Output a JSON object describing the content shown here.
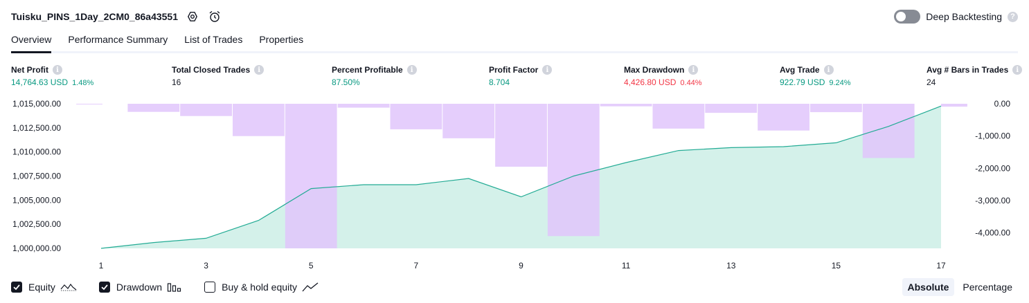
{
  "header": {
    "title": "Tuisku_PINS_1Day_2CM0_86a43551",
    "deep_backtesting_label": "Deep Backtesting",
    "help_glyph": "?"
  },
  "tabs": [
    {
      "label": "Overview",
      "active": true
    },
    {
      "label": "Performance Summary",
      "active": false
    },
    {
      "label": "List of Trades",
      "active": false
    },
    {
      "label": "Properties",
      "active": false
    }
  ],
  "metrics": [
    {
      "label": "Net Profit",
      "value": "14,764.63 USD",
      "pct": "1.48%",
      "tone": "pos"
    },
    {
      "label": "Total Closed Trades",
      "value": "16",
      "pct": "",
      "tone": "neu"
    },
    {
      "label": "Percent Profitable",
      "value": "87.50%",
      "pct": "",
      "tone": "pos"
    },
    {
      "label": "Profit Factor",
      "value": "8.704",
      "pct": "",
      "tone": "pos"
    },
    {
      "label": "Max Drawdown",
      "value": "4,426.80 USD",
      "pct": "0.44%",
      "tone": "neg"
    },
    {
      "label": "Avg Trade",
      "value": "922.79 USD",
      "pct": "9.24%",
      "tone": "pos"
    },
    {
      "label": "Avg # Bars in Trades",
      "value": "24",
      "pct": "",
      "tone": "neu"
    }
  ],
  "legend": {
    "equity_label": "Equity",
    "equity_checked": true,
    "drawdown_label": "Drawdown",
    "drawdown_checked": true,
    "buyhold_label": "Buy & hold equity",
    "buyhold_checked": false
  },
  "mode": {
    "absolute": "Absolute",
    "percentage": "Percentage",
    "selected": "Absolute"
  },
  "colors": {
    "equity_line": "#22ab94",
    "equity_fill": "#cdeee6",
    "drawdown_bar": "#e1c5fb",
    "positive": "#089981",
    "negative": "#f23645"
  },
  "icons": [
    "settings-icon",
    "alert-clock-icon",
    "info-icon",
    "check-icon",
    "equity-line-icon",
    "drawdown-bars-icon",
    "buyhold-line-icon"
  ],
  "chart_data": {
    "type": "line+bar",
    "x_ticks": [
      "1",
      "3",
      "5",
      "7",
      "9",
      "11",
      "13",
      "15",
      "17"
    ],
    "left_axis": {
      "ticks": [
        "1,015,000.00",
        "1,012,500.00",
        "1,010,000.00",
        "1,007,500.00",
        "1,005,000.00",
        "1,002,500.00",
        "1,000,000.00"
      ],
      "range": [
        1000000,
        1015000
      ]
    },
    "right_axis": {
      "ticks": [
        "0.00",
        "-1,000.00",
        "-2,000.00",
        "-3,000.00",
        "-4,000.00"
      ],
      "range": [
        -4480,
        0
      ]
    },
    "equity": {
      "name": "Equity",
      "x": [
        1,
        2,
        3,
        4,
        5,
        6,
        7,
        8,
        9,
        10,
        11,
        12,
        13,
        14,
        15,
        16,
        17
      ],
      "values": [
        1000000,
        1000600,
        1001050,
        1002900,
        1006200,
        1006600,
        1006600,
        1007250,
        1005350,
        1007500,
        1008900,
        1010150,
        1010450,
        1010550,
        1010950,
        1012650,
        1014765
      ]
    },
    "drawdown": {
      "name": "Drawdown",
      "x": [
        1,
        2,
        3,
        4,
        5,
        6,
        7,
        8,
        9,
        10,
        11,
        12,
        13,
        14,
        15,
        16,
        17
      ],
      "values": [
        -15,
        -250,
        -380,
        -1000,
        -4480,
        -120,
        -790,
        -1070,
        -1950,
        -4100,
        -80,
        -770,
        -280,
        -830,
        -260,
        -1680,
        -90
      ]
    }
  }
}
